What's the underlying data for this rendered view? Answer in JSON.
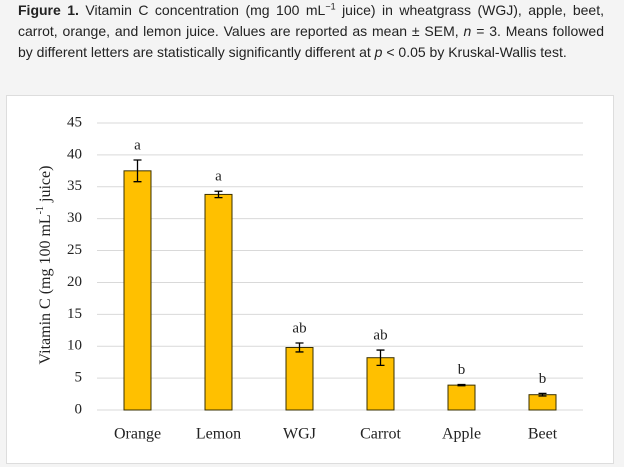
{
  "caption": {
    "label": "Figure 1.",
    "parts": [
      "Vitamin C concentration (mg 100 mL",
      "−1",
      " juice) in wheatgrass (WGJ), apple, beet, carrot, orange, and lemon juice. Values are reported as mean ± SEM, ",
      "n",
      " = 3. Means followed by different letters are statistically significantly different at ",
      "p",
      " < 0.05 by Kruskal-Wallis test."
    ]
  },
  "chart_data": {
    "type": "bar",
    "ylabel": [
      "Vitamin C (mg 100 mL",
      "-1",
      " juice)"
    ],
    "categories": [
      "Orange",
      "Lemon",
      "WGJ",
      "Carrot",
      "Apple",
      "Beet"
    ],
    "values": [
      37.5,
      33.8,
      9.8,
      8.2,
      3.9,
      2.4
    ],
    "errors": [
      1.7,
      0.5,
      0.7,
      1.2,
      0.1,
      0.2
    ],
    "letters": [
      "a",
      "a",
      "ab",
      "ab",
      "b",
      "b"
    ],
    "color": "#ffc000",
    "ylim": [
      0,
      45
    ],
    "yticks": [
      0,
      5,
      10,
      15,
      20,
      25,
      30,
      35,
      40,
      45
    ],
    "grid": true
  }
}
